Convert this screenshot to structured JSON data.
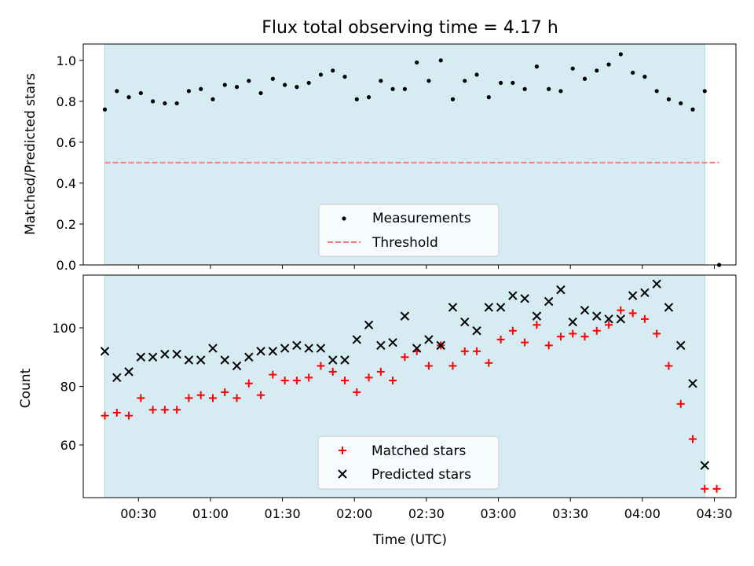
{
  "title": "Flux total observing time = 4.17 h",
  "colors": {
    "span": "#add8e6",
    "threshold": "#f08080",
    "measurement": "#000000",
    "matched": "#ff0000",
    "predicted": "#000000"
  },
  "chart_data": [
    {
      "type": "scatter",
      "panel": "top",
      "ylabel": "Matched/Predicted stars",
      "xlim": [
        "00:07",
        "04:39"
      ],
      "ylim": [
        0.0,
        1.08
      ],
      "y_ticks": [
        "0.0",
        "0.2",
        "0.4",
        "0.6",
        "0.8",
        "1.0"
      ],
      "observing_span": [
        "00:16",
        "04:26"
      ],
      "legend": [
        "Measurements",
        "Threshold"
      ],
      "legend_position": "lower center",
      "threshold": {
        "value": 0.5,
        "x_range": [
          "00:16",
          "04:32"
        ]
      },
      "series": [
        {
          "name": "Measurements",
          "x": [
            "00:16",
            "00:21",
            "00:26",
            "00:31",
            "00:36",
            "00:41",
            "00:46",
            "00:51",
            "00:56",
            "01:01",
            "01:06",
            "01:11",
            "01:16",
            "01:21",
            "01:26",
            "01:31",
            "01:36",
            "01:41",
            "01:46",
            "01:51",
            "01:56",
            "02:01",
            "02:06",
            "02:11",
            "02:16",
            "02:21",
            "02:26",
            "02:31",
            "02:36",
            "02:41",
            "02:46",
            "02:51",
            "02:56",
            "03:01",
            "03:06",
            "03:11",
            "03:16",
            "03:21",
            "03:26",
            "03:31",
            "03:36",
            "03:41",
            "03:46",
            "03:51",
            "03:56",
            "04:01",
            "04:06",
            "04:11",
            "04:16",
            "04:21",
            "04:26",
            "04:32"
          ],
          "values": [
            0.76,
            0.85,
            0.82,
            0.84,
            0.8,
            0.79,
            0.79,
            0.85,
            0.86,
            0.81,
            0.88,
            0.87,
            0.9,
            0.84,
            0.91,
            0.88,
            0.87,
            0.89,
            0.93,
            0.95,
            0.92,
            0.81,
            0.82,
            0.9,
            0.86,
            0.86,
            0.99,
            0.9,
            1.0,
            0.81,
            0.9,
            0.93,
            0.82,
            0.89,
            0.89,
            0.86,
            0.97,
            0.86,
            0.85,
            0.96,
            0.91,
            0.95,
            0.98,
            1.03,
            0.94,
            0.92,
            0.85,
            0.81,
            0.79,
            0.76,
            0.85,
            0.0
          ]
        }
      ]
    },
    {
      "type": "scatter",
      "panel": "bottom",
      "xlabel": "Time (UTC)",
      "ylabel": "Count",
      "xlim": [
        "00:07",
        "04:39"
      ],
      "ylim": [
        42,
        118
      ],
      "x_ticks": [
        "00:30",
        "01:00",
        "01:30",
        "02:00",
        "02:30",
        "03:00",
        "03:30",
        "04:00",
        "04:30"
      ],
      "y_ticks": [
        "60",
        "80",
        "100"
      ],
      "observing_span": [
        "00:16",
        "04:26"
      ],
      "legend": [
        "Matched stars",
        "Predicted stars"
      ],
      "legend_position": "lower center",
      "series": [
        {
          "name": "Matched stars",
          "x": [
            "00:16",
            "00:21",
            "00:26",
            "00:31",
            "00:36",
            "00:41",
            "00:46",
            "00:51",
            "00:56",
            "01:01",
            "01:06",
            "01:11",
            "01:16",
            "01:21",
            "01:26",
            "01:31",
            "01:36",
            "01:41",
            "01:46",
            "01:51",
            "01:56",
            "02:01",
            "02:06",
            "02:11",
            "02:16",
            "02:21",
            "02:26",
            "02:31",
            "02:36",
            "02:41",
            "02:46",
            "02:51",
            "02:56",
            "03:01",
            "03:06",
            "03:11",
            "03:16",
            "03:21",
            "03:26",
            "03:31",
            "03:36",
            "03:41",
            "03:46",
            "03:51",
            "03:56",
            "04:01",
            "04:06",
            "04:11",
            "04:16",
            "04:21",
            "04:26",
            "04:31"
          ],
          "values": [
            70,
            71,
            70,
            76,
            72,
            72,
            72,
            76,
            77,
            76,
            78,
            76,
            81,
            77,
            84,
            82,
            82,
            83,
            87,
            85,
            82,
            78,
            83,
            85,
            82,
            90,
            92,
            87,
            94,
            87,
            92,
            92,
            88,
            96,
            99,
            95,
            101,
            94,
            97,
            98,
            97,
            99,
            101,
            106,
            105,
            103,
            98,
            87,
            74,
            62,
            45,
            45
          ]
        },
        {
          "name": "Predicted stars",
          "x": [
            "00:16",
            "00:21",
            "00:26",
            "00:31",
            "00:36",
            "00:41",
            "00:46",
            "00:51",
            "00:56",
            "01:01",
            "01:06",
            "01:11",
            "01:16",
            "01:21",
            "01:26",
            "01:31",
            "01:36",
            "01:41",
            "01:46",
            "01:51",
            "01:56",
            "02:01",
            "02:06",
            "02:11",
            "02:16",
            "02:21",
            "02:26",
            "02:31",
            "02:36",
            "02:41",
            "02:46",
            "02:51",
            "02:56",
            "03:01",
            "03:06",
            "03:11",
            "03:16",
            "03:21",
            "03:26",
            "03:31",
            "03:36",
            "03:41",
            "03:46",
            "03:51",
            "03:56",
            "04:01",
            "04:06",
            "04:11",
            "04:16",
            "04:21",
            "04:26"
          ],
          "values": [
            92,
            83,
            85,
            90,
            90,
            91,
            91,
            89,
            89,
            93,
            89,
            87,
            90,
            92,
            92,
            93,
            94,
            93,
            93,
            89,
            89,
            96,
            101,
            94,
            95,
            104,
            93,
            96,
            94,
            107,
            102,
            99,
            107,
            107,
            111,
            110,
            104,
            109,
            113,
            102,
            106,
            104,
            103,
            103,
            111,
            112,
            115,
            107,
            94,
            81,
            53
          ]
        }
      ]
    }
  ]
}
